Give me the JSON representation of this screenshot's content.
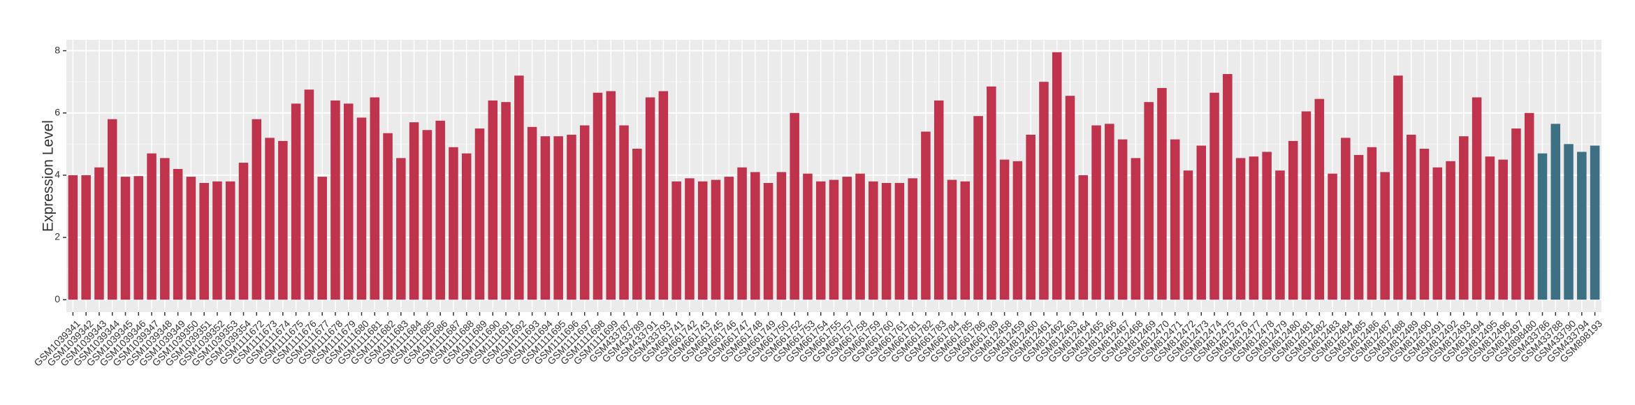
{
  "chart_data": {
    "type": "bar",
    "y_label": "Expression Level",
    "categories": [
      "GSM1039341",
      "GSM1039342",
      "GSM1039343",
      "GSM1039344",
      "GSM1039345",
      "GSM1039346",
      "GSM1039347",
      "GSM1039348",
      "GSM1039349",
      "GSM1039350",
      "GSM1039351",
      "GSM1039352",
      "GSM1039353",
      "GSM1039354",
      "GSM1111672",
      "GSM1111673",
      "GSM1111674",
      "GSM1111675",
      "GSM1111676",
      "GSM1111677",
      "GSM1111678",
      "GSM1111679",
      "GSM1111680",
      "GSM1111681",
      "GSM1111682",
      "GSM1111683",
      "GSM1111684",
      "GSM1111685",
      "GSM1111686",
      "GSM1111687",
      "GSM1111688",
      "GSM1111689",
      "GSM1111690",
      "GSM1111691",
      "GSM1111692",
      "GSM1111693",
      "GSM1111694",
      "GSM1111695",
      "GSM1111696",
      "GSM1111697",
      "GSM1111698",
      "GSM1111699",
      "GSM433787",
      "GSM433789",
      "GSM433791",
      "GSM433793",
      "GSM661741",
      "GSM661742",
      "GSM661743",
      "GSM661745",
      "GSM661746",
      "GSM661747",
      "GSM661748",
      "GSM661749",
      "GSM661750",
      "GSM661752",
      "GSM661753",
      "GSM661754",
      "GSM661755",
      "GSM661757",
      "GSM661758",
      "GSM661759",
      "GSM661760",
      "GSM661761",
      "GSM661781",
      "GSM661782",
      "GSM661783",
      "GSM661784",
      "GSM661785",
      "GSM661786",
      "GSM661789",
      "GSM812458",
      "GSM812459",
      "GSM812460",
      "GSM812461",
      "GSM812462",
      "GSM812463",
      "GSM812464",
      "GSM812465",
      "GSM812466",
      "GSM812467",
      "GSM812468",
      "GSM812469",
      "GSM812470",
      "GSM812471",
      "GSM812472",
      "GSM812473",
      "GSM812474",
      "GSM812475",
      "GSM812476",
      "GSM812477",
      "GSM812478",
      "GSM812479",
      "GSM812480",
      "GSM812481",
      "GSM812482",
      "GSM812483",
      "GSM812484",
      "GSM812485",
      "GSM812486",
      "GSM812487",
      "GSM812488",
      "GSM812489",
      "GSM812490",
      "GSM812491",
      "GSM812492",
      "GSM812493",
      "GSM812494",
      "GSM812495",
      "GSM812496",
      "GSM812497",
      "GSM898480",
      "GSM433786",
      "GSM433788",
      "GSM433790",
      "GSM433794",
      "GSM898193"
    ],
    "values": [
      4.0,
      4.0,
      4.25,
      5.8,
      3.95,
      3.97,
      4.7,
      4.55,
      4.2,
      3.95,
      3.75,
      3.8,
      3.8,
      4.4,
      5.8,
      5.2,
      5.1,
      6.3,
      6.75,
      3.95,
      6.4,
      6.3,
      5.85,
      6.5,
      5.35,
      4.55,
      5.7,
      5.45,
      5.75,
      4.9,
      4.7,
      5.5,
      6.4,
      6.35,
      7.2,
      5.55,
      5.25,
      5.25,
      5.3,
      5.6,
      6.65,
      6.7,
      5.6,
      4.85,
      6.5,
      6.7,
      3.8,
      3.9,
      3.8,
      3.85,
      3.95,
      4.25,
      4.1,
      3.75,
      4.1,
      6.0,
      4.05,
      3.8,
      3.85,
      3.95,
      4.05,
      3.8,
      3.75,
      3.75,
      3.9,
      5.4,
      6.4,
      3.85,
      3.8,
      5.9,
      6.85,
      4.5,
      4.45,
      5.3,
      7.0,
      7.95,
      6.55,
      4.0,
      5.6,
      5.65,
      5.15,
      4.55,
      6.35,
      6.8,
      5.15,
      4.15,
      4.95,
      6.65,
      7.25,
      4.55,
      4.6,
      4.75,
      4.15,
      5.1,
      6.05,
      6.45,
      4.05,
      5.2,
      4.65,
      4.9,
      4.1,
      7.2,
      5.3,
      4.85,
      4.25,
      4.45,
      5.25,
      6.5,
      4.6,
      4.5,
      5.5,
      6.0,
      4.7,
      5.65,
      5.0,
      4.75,
      4.95
    ],
    "colors": [
      "#c0334d",
      "#c0334d",
      "#c0334d",
      "#c0334d",
      "#c0334d",
      "#c0334d",
      "#c0334d",
      "#c0334d",
      "#c0334d",
      "#c0334d",
      "#c0334d",
      "#c0334d",
      "#c0334d",
      "#c0334d",
      "#c0334d",
      "#c0334d",
      "#c0334d",
      "#c0334d",
      "#c0334d",
      "#c0334d",
      "#c0334d",
      "#c0334d",
      "#c0334d",
      "#c0334d",
      "#c0334d",
      "#c0334d",
      "#c0334d",
      "#c0334d",
      "#c0334d",
      "#c0334d",
      "#c0334d",
      "#c0334d",
      "#c0334d",
      "#c0334d",
      "#c0334d",
      "#c0334d",
      "#c0334d",
      "#c0334d",
      "#c0334d",
      "#c0334d",
      "#c0334d",
      "#c0334d",
      "#c0334d",
      "#c0334d",
      "#c0334d",
      "#c0334d",
      "#c0334d",
      "#c0334d",
      "#c0334d",
      "#c0334d",
      "#c0334d",
      "#c0334d",
      "#c0334d",
      "#c0334d",
      "#c0334d",
      "#c0334d",
      "#c0334d",
      "#c0334d",
      "#c0334d",
      "#c0334d",
      "#c0334d",
      "#c0334d",
      "#c0334d",
      "#c0334d",
      "#c0334d",
      "#c0334d",
      "#c0334d",
      "#c0334d",
      "#c0334d",
      "#c0334d",
      "#c0334d",
      "#c0334d",
      "#c0334d",
      "#c0334d",
      "#c0334d",
      "#c0334d",
      "#c0334d",
      "#c0334d",
      "#c0334d",
      "#c0334d",
      "#c0334d",
      "#c0334d",
      "#c0334d",
      "#c0334d",
      "#c0334d",
      "#c0334d",
      "#c0334d",
      "#c0334d",
      "#c0334d",
      "#c0334d",
      "#c0334d",
      "#c0334d",
      "#c0334d",
      "#c0334d",
      "#c0334d",
      "#c0334d",
      "#c0334d",
      "#c0334d",
      "#c0334d",
      "#c0334d",
      "#c0334d",
      "#c0334d",
      "#c0334d",
      "#c0334d",
      "#c0334d",
      "#c0334d",
      "#c0334d",
      "#c0334d",
      "#c0334d",
      "#c0334d",
      "#c0334d",
      "#c0334d",
      "#3e7083",
      "#3e7083",
      "#3e7083",
      "#3e7083",
      "#3e7083"
    ],
    "ylim": [
      -0.4,
      8.35
    ],
    "yticks": [
      0,
      2,
      4,
      6,
      8
    ],
    "grid": true
  }
}
